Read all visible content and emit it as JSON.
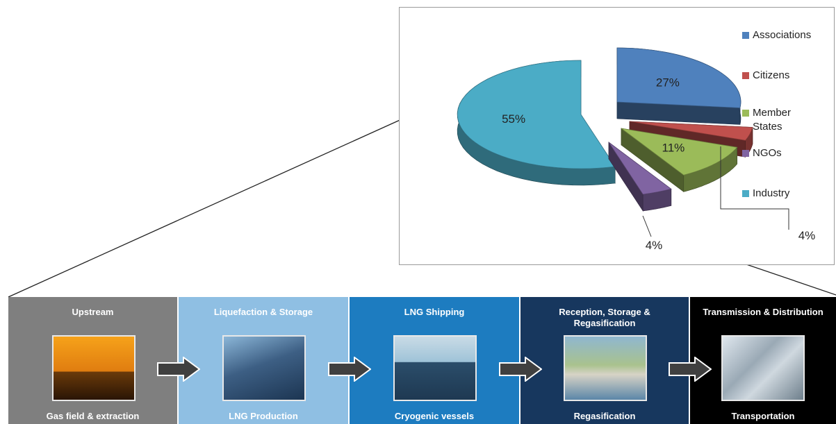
{
  "chart_data": {
    "type": "pie",
    "title": "",
    "slices": [
      {
        "label": "Associations",
        "value": 27,
        "display": "27%",
        "color": "#4f81bd"
      },
      {
        "label": "Citizens",
        "value": 4,
        "display": "4%",
        "color": "#c0504d"
      },
      {
        "label": "Member States",
        "value": 11,
        "display": "11%",
        "color": "#9bbb59"
      },
      {
        "label": "NGOs",
        "value": 4,
        "display": "4%",
        "color": "#8064a2"
      },
      {
        "label": "Industry",
        "value": 55,
        "display": "55%",
        "color": "#4bacc6"
      }
    ],
    "legend": {
      "placement": "right",
      "entries": [
        "Associations",
        "Citizens",
        "Member States",
        "NGOs",
        "Industry"
      ]
    },
    "style": "3d exploded pie"
  },
  "supply_chain": {
    "stages": [
      {
        "title": "Upstream",
        "subtitle": "Gas field & extraction",
        "color": "#7f7f7f",
        "icon": "offshore-rig-photo"
      },
      {
        "title": "Liquefaction & Storage",
        "subtitle": "LNG Production",
        "color": "#8fbfe3",
        "icon": "lng-plant-photo"
      },
      {
        "title": "LNG Shipping",
        "subtitle": "Cryogenic vessels",
        "color": "#1d7cc0",
        "icon": "lng-carrier-ship-photo"
      },
      {
        "title": "Reception, Storage & Regasification",
        "subtitle": "Regasification",
        "color": "#17375e",
        "icon": "regas-terminal-photo"
      },
      {
        "title": "Transmission & Distribution",
        "subtitle": "Transportation",
        "color": "#000000",
        "icon": "pipelines-photo"
      }
    ],
    "arrow_color": "#404040"
  }
}
